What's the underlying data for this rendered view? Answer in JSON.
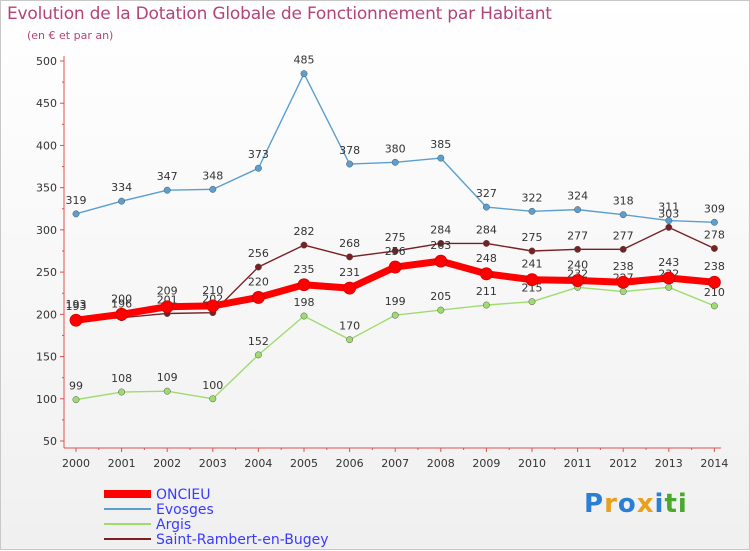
{
  "chart_data": {
    "type": "line",
    "title": "Evolution de la Dotation Globale de Fonctionnement par Habitant",
    "subtitle": "(en € et par an)",
    "x": [
      "2000",
      "2001",
      "2002",
      "2003",
      "2004",
      "2005",
      "2006",
      "2007",
      "2008",
      "2009",
      "2010",
      "2011",
      "2012",
      "2013",
      "2014"
    ],
    "ylim": [
      50,
      500
    ],
    "yticks": [
      50,
      100,
      150,
      200,
      250,
      300,
      350,
      400,
      450,
      500
    ],
    "grid": false,
    "legend_position": "bottom-left",
    "series": [
      {
        "name": "Saint-Rambert-en-Bugey",
        "color": "#7a1f23",
        "values": [
          193,
          196,
          201,
          202,
          256,
          282,
          268,
          275,
          284,
          284,
          275,
          277,
          277,
          303,
          278
        ]
      },
      {
        "name": "Argis",
        "color": "#9fdc6f",
        "values": [
          99,
          108,
          109,
          100,
          152,
          198,
          170,
          199,
          205,
          211,
          215,
          232,
          227,
          232,
          210
        ]
      },
      {
        "name": "Evosges",
        "color": "#5a9fd0",
        "values": [
          319,
          334,
          347,
          348,
          373,
          485,
          378,
          380,
          385,
          327,
          322,
          324,
          318,
          311,
          309
        ]
      },
      {
        "name": "ONCIEU",
        "color": "#ff0000",
        "values": [
          193,
          200,
          209,
          210,
          220,
          235,
          231,
          256,
          263,
          248,
          241,
          240,
          238,
          243,
          238
        ]
      }
    ],
    "legend_order": [
      "ONCIEU",
      "Evosges",
      "Argis",
      "Saint-Rambert-en-Bugey"
    ]
  },
  "logo": {
    "letters": [
      "P",
      "r",
      "o",
      "x",
      "i",
      "t",
      "i"
    ],
    "colors": [
      "#2a7fd4",
      "#e8a020",
      "#2a7fd4",
      "#e8a020",
      "#2a7fd4",
      "#4aa82e",
      "#4aa82e"
    ]
  }
}
